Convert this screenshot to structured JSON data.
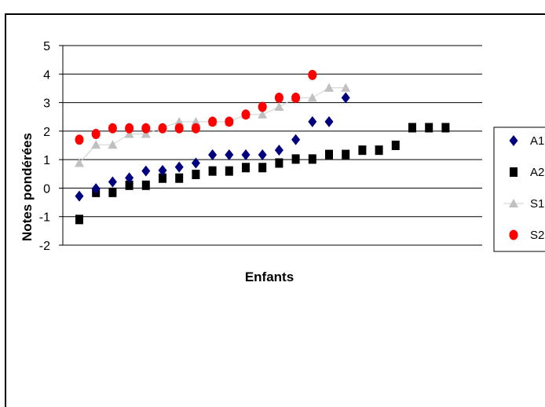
{
  "chart_data": {
    "type": "scatter",
    "xlabel": "Enfants",
    "ylabel": "Notes pondérées",
    "ylim": [
      -2,
      5
    ],
    "yticks": [
      "5",
      "4",
      "3",
      "2",
      "1",
      "0",
      "-1",
      "-2"
    ],
    "grid": "horizontal",
    "legend": "right",
    "series": [
      {
        "name": "A1",
        "marker": "diamond",
        "color": "#00007f",
        "line": false,
        "values": [
          -0.28,
          -0.02,
          0.22,
          0.36,
          0.6,
          0.62,
          0.74,
          0.88,
          1.17,
          1.17,
          1.17,
          1.17,
          1.33,
          1.7,
          2.33,
          2.33,
          3.17
        ]
      },
      {
        "name": "A2",
        "marker": "square",
        "color": "#000000",
        "line": false,
        "values": [
          -1.1,
          -0.15,
          -0.15,
          0.1,
          0.1,
          0.35,
          0.35,
          0.48,
          0.6,
          0.6,
          0.72,
          0.72,
          0.88,
          1.02,
          1.02,
          1.18,
          1.18,
          1.33,
          1.33,
          1.5,
          2.12,
          2.12,
          2.12
        ]
      },
      {
        "name": "S1",
        "marker": "triangle",
        "color": "#c0c0c0",
        "line": true,
        "values": [
          0.88,
          1.52,
          1.52,
          1.9,
          1.9,
          2.12,
          2.33,
          2.33,
          2.33,
          2.33,
          2.58,
          2.58,
          2.85,
          3.17,
          3.17,
          3.52,
          3.52
        ]
      },
      {
        "name": "S2",
        "marker": "circle",
        "color": "#ff0000",
        "line": false,
        "values": [
          1.7,
          1.9,
          2.1,
          2.1,
          2.1,
          2.1,
          2.1,
          2.1,
          2.33,
          2.33,
          2.58,
          2.85,
          3.17,
          3.17,
          3.97
        ]
      }
    ]
  }
}
